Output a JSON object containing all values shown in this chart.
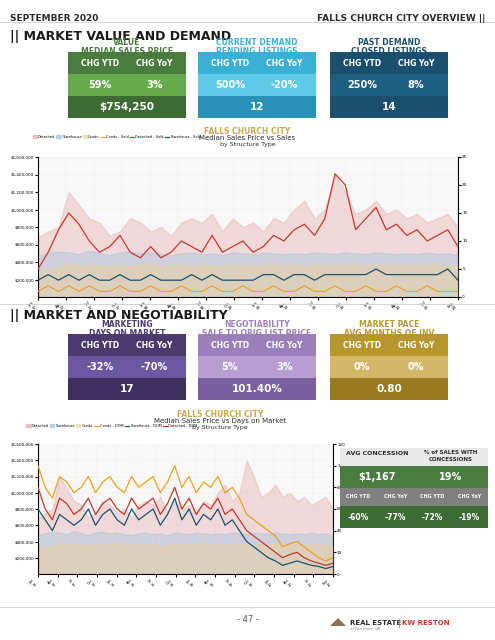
{
  "title_left": "SEPTEMBER 2020",
  "title_right": "FALLS CHURCH CITY OVERVIEW ||",
  "section1_title": "|| MARKET VALUE AND DEMAND",
  "section2_title": "|| MARKET AND NEGOTIABILITY",
  "col1_label1": "VALUE",
  "col1_label2": "MEDIAN SALES PRICE",
  "col1_header1": "CHG YTD",
  "col1_header2": "CHG YoY",
  "col1_val1": "59%",
  "col1_val2": "3%",
  "col1_big": "$754,250",
  "col1_color_header": "#4a7c3f",
  "col1_color_light": "#6aaa4e",
  "col1_color_dark": "#3d6b34",
  "col2_label1": "CURRENT DEMAND",
  "col2_label2": "PENDING LISTINGS",
  "col2_header1": "CHG YTD",
  "col2_header2": "CHG YoY",
  "col2_val1": "500%",
  "col2_val2": "-20%",
  "col2_big": "12",
  "col2_color_header": "#3ab0d5",
  "col2_color_light": "#5ecae8",
  "col2_color_dark": "#2990b8",
  "col3_label1": "PAST DEMAND",
  "col3_label2": "CLOSED LISTINGS",
  "col3_header1": "CHG YTD",
  "col3_header2": "CHG YoY",
  "col3_val1": "250%",
  "col3_val2": "8%",
  "col3_big": "14",
  "col3_color_header": "#1a4f6e",
  "col3_color_light": "#1e5f82",
  "col3_color_dark": "#1a4f6e",
  "chart1_title": "FALLS CHURCH CITY",
  "chart1_subtitle": "Median Sales Price vs Sales",
  "chart1_subtitle2": "by Structure Type",
  "neg_col1_label1": "MARKETING",
  "neg_col1_label2": "DAYS ON MARKET",
  "neg_col1_header1": "CHG YTD",
  "neg_col1_header2": "CHG YoY",
  "neg_col1_val1": "-32%",
  "neg_col1_val2": "-70%",
  "neg_col1_big": "17",
  "neg_col1_color_header": "#4a3a6e",
  "neg_col1_color_light": "#6a58a0",
  "neg_col1_color_dark": "#3d2f5e",
  "neg_col2_label1": "NEGOTIABILITY",
  "neg_col2_label2": "SALE TO ORIG LIST PRICE",
  "neg_col2_header1": "CHG YTD",
  "neg_col2_header2": "CHG YoY",
  "neg_col2_val1": "5%",
  "neg_col2_val2": "3%",
  "neg_col2_big": "101.40%",
  "neg_col2_color_header": "#9b7fba",
  "neg_col2_color_light": "#b89ed0",
  "neg_col2_color_dark": "#7a5fa0",
  "neg_col3_label1": "MARKET PACE",
  "neg_col3_label2": "AVG MONTHS OF INV",
  "neg_col3_header1": "CHG YTD",
  "neg_col3_header2": "CHG YoY",
  "neg_col3_val1": "0%",
  "neg_col3_val2": "0%",
  "neg_col3_big": "0.80",
  "neg_col3_color_header": "#b8962e",
  "neg_col3_color_light": "#d4b86a",
  "neg_col3_color_dark": "#9a7a20",
  "chart2_title": "FALLS CHURCH CITY",
  "chart2_subtitle": "Median Sales Price vs Days on Market",
  "chart2_subtitle2": "by Structure Type",
  "avg_concession": "$1,167",
  "pct_sales_concessions": "19%",
  "avg_con_ytd": "-60%",
  "avg_con_yoy": "-77%",
  "pct_con_ytd": "-72%",
  "pct_con_yoy": "-19%",
  "footer": "- 47 -",
  "bg_color": "#ffffff"
}
